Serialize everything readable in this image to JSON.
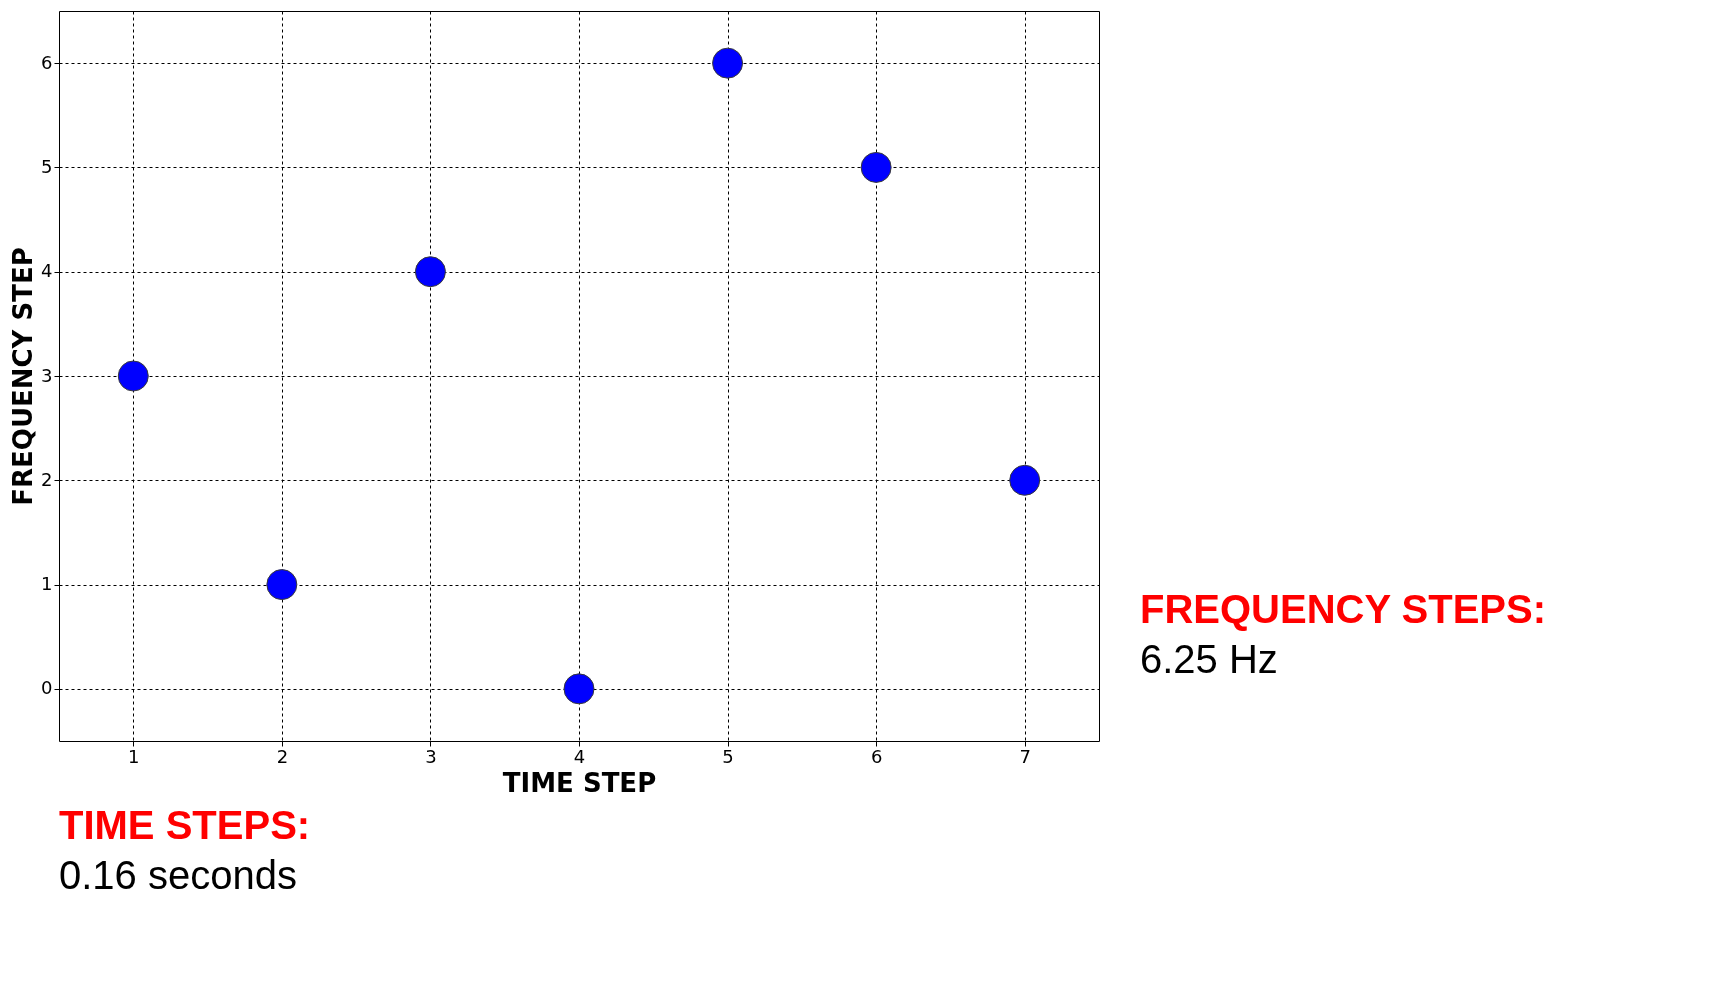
{
  "chart_data": {
    "type": "scatter",
    "xlabel": "TIME STEP",
    "ylabel": "FREQUENCY STEP",
    "x": [
      1,
      2,
      3,
      4,
      5,
      6,
      7
    ],
    "series": [
      {
        "color": "#0000ff",
        "values": [
          3,
          1,
          4,
          0,
          6,
          5,
          2
        ]
      }
    ],
    "xlim": [
      0.5,
      7.5
    ],
    "ylim": [
      -0.5,
      6.5
    ],
    "xticks": [
      1,
      2,
      3,
      4,
      5,
      6,
      7
    ],
    "yticks": [
      0,
      1,
      2,
      3,
      4,
      5,
      6
    ],
    "grid": true,
    "marker": "circle",
    "annotations": [
      "FREQUENCY STEPS:",
      "6.25 Hz",
      "TIME STEPS:",
      "0.16 seconds"
    ]
  }
}
